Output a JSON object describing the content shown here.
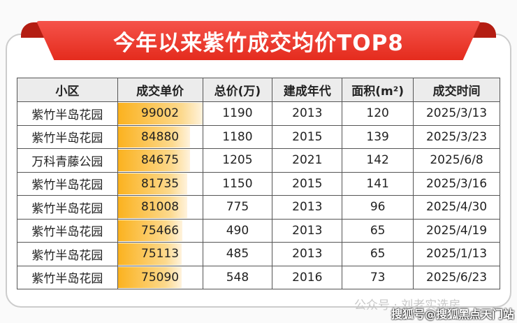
{
  "title": "今年以来紫竹成交均价TOP8",
  "columns": [
    "小区",
    "成交单价",
    "总价(万)",
    "建成年代",
    "面积(m²)",
    "成交时间"
  ],
  "rows": [
    [
      "紫竹半岛花园",
      "99002",
      "1190",
      "2013",
      "120",
      "2025/3/13"
    ],
    [
      "紫竹半岛花园",
      "84880",
      "1180",
      "2015",
      "139",
      "2025/3/23"
    ],
    [
      "万科青藤公园",
      "84675",
      "1205",
      "2021",
      "142",
      "2025/6/8"
    ],
    [
      "紫竹半岛花园",
      "81735",
      "1150",
      "2015",
      "141",
      "2025/3/16"
    ],
    [
      "紫竹半岛花园",
      "81008",
      "775",
      "2013",
      "96",
      "2025/4/30"
    ],
    [
      "紫竹半岛花园",
      "75466",
      "490",
      "2013",
      "65",
      "2025/4/19"
    ],
    [
      "紫竹半岛花园",
      "75113",
      "485",
      "2013",
      "65",
      "2025/1/13"
    ],
    [
      "紫竹半岛花园",
      "75090",
      "548",
      "2016",
      "73",
      "2025/6/23"
    ]
  ],
  "colors": {
    "ribbon": "#e42b1d",
    "bar": "#fbb21f"
  },
  "watermark": "公众号 · 刘老实选房",
  "source": "搜狐号@搜狐黑点天门站"
}
